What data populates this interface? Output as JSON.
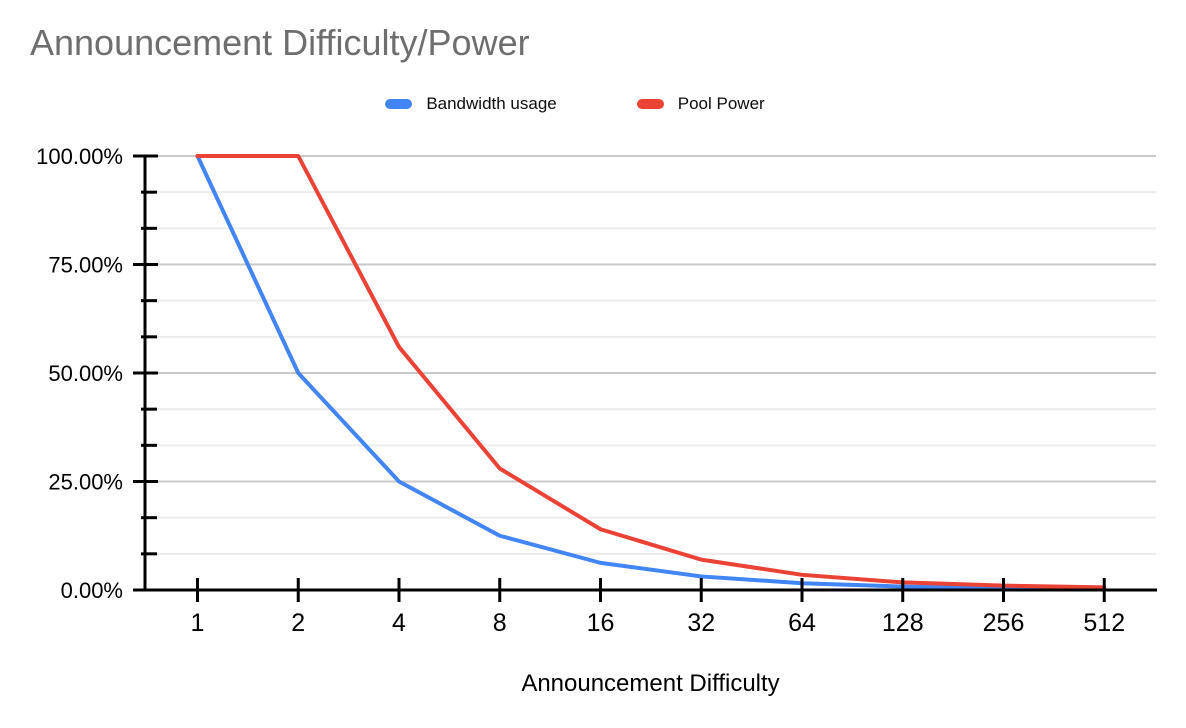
{
  "title": "Announcement Difficulty/Power",
  "legend": [
    {
      "label": "Bandwidth usage",
      "color": "#4285F4"
    },
    {
      "label": "Pool Power",
      "color": "#EA4335"
    }
  ],
  "x_axis_title": "Announcement Difficulty",
  "colors": {
    "title": "#6e6e6e",
    "axis": "#000000",
    "grid_major": "#c9c9c9",
    "grid_minor": "#ececec",
    "text": "#000000",
    "background": "#ffffff"
  },
  "chart_data": {
    "type": "line",
    "title": "Announcement Difficulty/Power",
    "xlabel": "Announcement Difficulty",
    "ylabel": "",
    "x_scale": "categorical (powers of 2)",
    "categories": [
      "1",
      "2",
      "4",
      "8",
      "16",
      "32",
      "64",
      "128",
      "256",
      "512"
    ],
    "series": [
      {
        "name": "Bandwidth usage",
        "color": "#4285F4",
        "values": [
          100,
          50,
          25,
          12.5,
          6.25,
          3.125,
          1.5625,
          0.78125,
          0.390625,
          0.1953125
        ]
      },
      {
        "name": "Pool Power",
        "color": "#EA4335",
        "values": [
          100,
          100,
          56,
          28,
          14,
          7,
          3.5,
          1.75,
          1,
          0.6
        ]
      }
    ],
    "ylim": [
      0,
      100
    ],
    "y_major_ticks": [
      {
        "value": 100,
        "label": "100.00%"
      },
      {
        "value": 75,
        "label": "75.00%"
      },
      {
        "value": 50,
        "label": "50.00%"
      },
      {
        "value": 25,
        "label": "25.00%"
      },
      {
        "value": 0,
        "label": "0.00%"
      }
    ],
    "y_minor_divisions_per_major": 3,
    "grid": true,
    "legend_position": "top"
  }
}
